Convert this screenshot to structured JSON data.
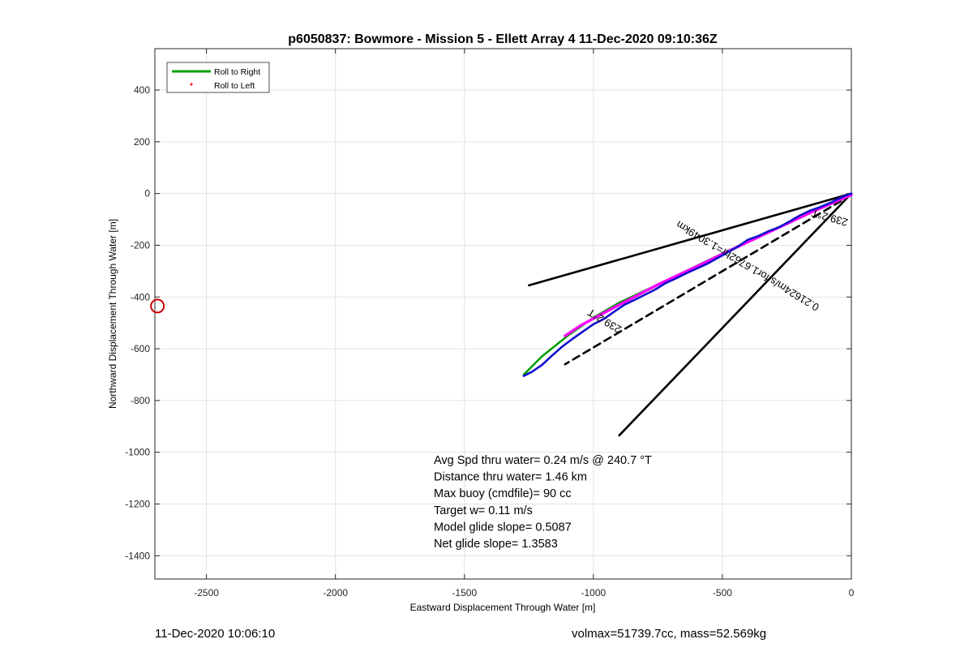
{
  "footer": {
    "left": "11-Dec-2020 10:06:10",
    "right": "volmax=51739.7cc, mass=52.569kg"
  },
  "chart_data": {
    "type": "line",
    "title": "p6050837: Bowmore - Mission 5 - Ellett Array 4 11-Dec-2020 09:10:36Z",
    "xlabel": "Eastward Displacement Through Water [m]",
    "ylabel": "Northward Displacement Through Water [m]",
    "xlim": [
      -2700,
      0
    ],
    "ylim": [
      -1490,
      560
    ],
    "xticks": [
      -2500,
      -2000,
      -1500,
      -1000,
      -500,
      0
    ],
    "yticks": [
      -1400,
      -1200,
      -1000,
      -800,
      -600,
      -400,
      -200,
      0,
      200,
      400
    ],
    "grid": true,
    "legend": {
      "position": "top-left",
      "entries": [
        {
          "label": "Roll to Right",
          "color": "#00a000",
          "style": "line"
        },
        {
          "label": "Roll to Left",
          "color": "#ff0000",
          "style": "dot"
        }
      ]
    },
    "series": [
      {
        "name": "Roll to Right",
        "color": "#00a000",
        "x": [
          0,
          -100,
          -200,
          -300,
          -400,
          -500,
          -600,
          -700,
          -800,
          -900,
          -1000,
          -1100,
          -1200,
          -1270
        ],
        "y": [
          0,
          -47,
          -92,
          -140,
          -185,
          -232,
          -280,
          -328,
          -375,
          -422,
          -480,
          -550,
          -630,
          -700
        ]
      },
      {
        "color": "#ff00ff",
        "x": [
          0,
          -150,
          -300,
          -450,
          -600,
          -750,
          -900,
          -1050,
          -1110
        ],
        "y": [
          -5,
          -70,
          -140,
          -210,
          -282,
          -352,
          -430,
          -510,
          -550
        ]
      },
      {
        "color": "#1010cc",
        "x": [
          0,
          -40,
          -80,
          -120,
          -160,
          -200,
          -240,
          -280,
          -320,
          -360,
          -400,
          -440,
          -480,
          -520,
          -560,
          -600,
          -640,
          -680,
          -720,
          -760,
          -800,
          -840,
          -880,
          -920,
          -960,
          -1000,
          -1040,
          -1080,
          -1120,
          -1160,
          -1200,
          -1240,
          -1270
        ],
        "y": [
          0,
          -15,
          -35,
          -52,
          -66,
          -85,
          -108,
          -130,
          -145,
          -164,
          -178,
          -205,
          -228,
          -250,
          -272,
          -290,
          -308,
          -328,
          -346,
          -371,
          -391,
          -411,
          -430,
          -457,
          -485,
          -505,
          -533,
          -561,
          -591,
          -626,
          -663,
          -690,
          -705
        ]
      }
    ],
    "reference_lines": [
      {
        "x": [
          0,
          -1250
        ],
        "y": [
          0,
          -355
        ],
        "style": "solid"
      },
      {
        "x": [
          0,
          -900
        ],
        "y": [
          0,
          -935
        ],
        "style": "solid"
      },
      {
        "x": [
          0,
          -1110
        ],
        "y": [
          -5,
          -660
        ],
        "style": "dashed"
      }
    ],
    "annotations": [
      {
        "text": "0.21624m/s for1.6762hr=1.3049km",
        "x": -395,
        "y": -268,
        "angle": 31
      },
      {
        "text": "239.2°T",
        "x": -80,
        "y": -80,
        "angle": 16
      },
      {
        "text": "239.2°T",
        "x": -950,
        "y": -480,
        "angle": 31
      }
    ],
    "marker": {
      "x": -2690,
      "y": -435,
      "shape": "circle",
      "color": "#cc0000"
    },
    "stats": [
      "Avg Spd thru water=  0.24 m/s @ 240.7 °T",
      "Distance thru water=  1.46 km",
      "Max buoy (cmdfile)= 90 cc",
      "Target w= 0.11 m/s",
      "Model glide slope= 0.5087",
      "Net glide slope= 1.3583"
    ]
  }
}
